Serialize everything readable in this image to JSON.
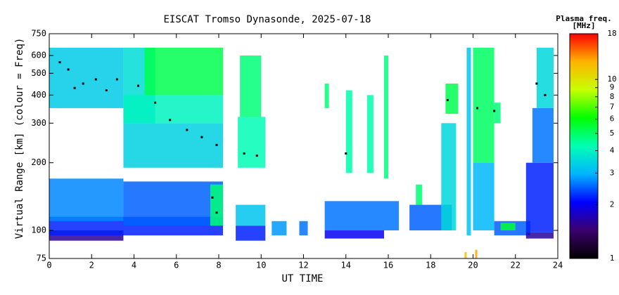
{
  "chart_data": {
    "type": "heatmap",
    "title": "EISCAT Tromso Dynasonde, 2025-07-18",
    "xlabel": "UT TIME",
    "ylabel": "Virtual Range [km] (colour = Freq)",
    "colorbar_title": "Plasma freq.",
    "colorbar_unit": "[MHz]",
    "xlim": [
      0,
      24
    ],
    "xticks": [
      0,
      2,
      4,
      6,
      8,
      10,
      12,
      14,
      16,
      18,
      20,
      22,
      24
    ],
    "ylim": [
      75,
      750
    ],
    "yticks": [
      75,
      100,
      200,
      300,
      400,
      500,
      600,
      750
    ],
    "ylog": true,
    "clim": [
      1,
      18
    ],
    "cticks": [
      1,
      2,
      3,
      4,
      5,
      6,
      7,
      8,
      9,
      10,
      18
    ],
    "clog": true,
    "colormap": [
      "#000000",
      "#3c006e",
      "#0000ff",
      "#00b4ff",
      "#00ffb4",
      "#00ff00",
      "#c8ff00",
      "#ffb400",
      "#ff0000"
    ],
    "cells": {
      "x0": [
        0,
        0,
        0,
        3.5,
        0,
        3.5,
        3.5,
        3.5,
        4.5,
        7.6,
        8.8,
        8.8,
        8.9,
        9.0,
        10.5,
        11.8,
        13,
        13,
        13,
        14,
        15,
        15.8,
        17,
        17.3,
        18.5,
        18.7,
        19.7,
        20,
        20,
        21,
        21.3,
        22.5,
        22.5,
        22.8,
        23,
        21,
        19.6,
        20.1
      ],
      "x1": [
        3.5,
        8.2,
        3.5,
        8.2,
        3.5,
        5,
        8.2,
        8.2,
        8.2,
        8.2,
        10.2,
        10.2,
        10.2,
        10.0,
        11.2,
        12.2,
        15.8,
        16.5,
        13.2,
        14.3,
        15.3,
        16,
        19,
        17.6,
        19.2,
        19.3,
        19.9,
        21,
        21,
        22.7,
        22,
        23.8,
        23.8,
        23.8,
        23.8,
        21.3,
        19.7,
        20.2
      ],
      "y0": [
        90,
        95,
        110,
        105,
        350,
        300,
        190,
        300,
        400,
        105,
        90,
        105,
        190,
        320,
        95,
        95,
        92,
        100,
        350,
        180,
        180,
        170,
        100,
        130,
        100,
        330,
        95,
        200,
        100,
        95,
        100,
        92,
        98,
        200,
        350,
        300,
        75,
        75
      ],
      "y1": [
        100,
        115,
        170,
        165,
        650,
        650,
        300,
        400,
        650,
        160,
        105,
        130,
        320,
        600,
        110,
        110,
        100,
        135,
        450,
        420,
        400,
        600,
        130,
        160,
        300,
        450,
        650,
        650,
        200,
        110,
        108,
        98,
        200,
        350,
        650,
        370,
        80,
        82
      ],
      "values": [
        1.6,
        2.2,
        2.7,
        2.5,
        3.3,
        3.6,
        3.4,
        4.0,
        5.2,
        4.8,
        2.2,
        3.2,
        4.2,
        4.8,
        2.8,
        2.6,
        2.0,
        2.6,
        4.8,
        4.3,
        4.3,
        4.7,
        2.5,
        4.8,
        3.5,
        5.2,
        3.2,
        5.0,
        3.0,
        2.5,
        5.5,
        1.6,
        2.2,
        2.6,
        3.5,
        4.8,
        12,
        13
      ]
    },
    "trace": {
      "x": [
        0.5,
        0.9,
        1.2,
        1.6,
        2.2,
        2.7,
        3.2,
        4.2,
        5,
        5.7,
        6.5,
        7.2,
        7.9,
        9.2,
        9.8,
        14,
        18.8,
        20.2,
        21,
        23,
        23.4,
        7.9,
        7.7
      ],
      "y": [
        560,
        520,
        430,
        450,
        470,
        420,
        470,
        440,
        370,
        310,
        280,
        260,
        240,
        220,
        215,
        220,
        380,
        350,
        340,
        450,
        400,
        120,
        140
      ]
    }
  }
}
